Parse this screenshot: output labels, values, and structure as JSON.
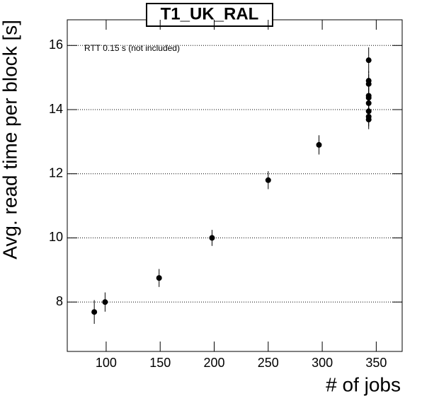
{
  "chart_data": {
    "type": "scatter",
    "title": "T1_UK_RAL",
    "annotation": "RTT 0.15 s (not included)",
    "x_label": "# of jobs",
    "y_label": "Avg. read time per block [s]",
    "x": [
      89,
      99,
      149,
      198,
      250,
      297,
      343,
      343,
      343,
      343,
      343,
      343,
      343,
      343,
      343
    ],
    "values": [
      7.69,
      8.0,
      8.75,
      10.0,
      11.8,
      12.9,
      15.54,
      14.9,
      14.8,
      14.43,
      14.37,
      14.2,
      13.95,
      13.78,
      13.69
    ],
    "errors": [
      0.37,
      0.3,
      0.28,
      0.25,
      0.28,
      0.3,
      0.4,
      0.3,
      0.3,
      0.3,
      0.3,
      0.3,
      0.3,
      0.3,
      0.3
    ],
    "color": "#000000",
    "xlim": [
      64,
      374
    ],
    "ylim": [
      6.46,
      16.8
    ],
    "xticks": [
      100,
      150,
      200,
      250,
      300,
      350
    ],
    "yticks": [
      8,
      10,
      12,
      14,
      16
    ],
    "grid": true
  }
}
